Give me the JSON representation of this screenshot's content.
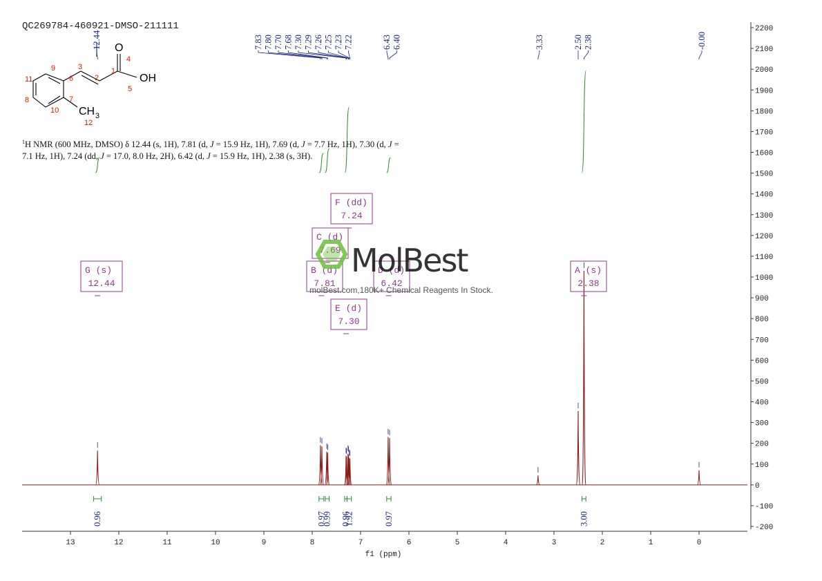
{
  "header": {
    "sample_id": "QC269784-460921-DMSO-211111"
  },
  "nmr_description": {
    "sup": "1",
    "parts": [
      {
        "t": "H NMR (600 MHz, DMSO) δ 12.44 (s, 1H), 7.81 (d, ",
        "i": false
      },
      {
        "t": "J",
        "i": true
      },
      {
        "t": " = 15.9 Hz, 1H), 7.69 (d, ",
        "i": false
      },
      {
        "t": "J",
        "i": true
      },
      {
        "t": " = 7.7 Hz, 1H), 7.30 (d, ",
        "i": false
      },
      {
        "t": "J",
        "i": true
      },
      {
        "t": " = 7.1 Hz, 1H), 7.24 (dd, ",
        "i": false
      },
      {
        "t": "J",
        "i": true
      },
      {
        "t": " = 17.0, 8.0 Hz, 2H), 6.42 (d, ",
        "i": false
      },
      {
        "t": "J",
        "i": true
      },
      {
        "t": " = 15.9 Hz, 1H), 2.38 (s, 3H).",
        "i": false
      }
    ]
  },
  "molecule": {
    "atoms": [
      {
        "label": "O",
        "color": "#000000"
      },
      {
        "label": "OH",
        "color": "#000000"
      },
      {
        "label": "CH",
        "sub": "3",
        "color": "#000000"
      }
    ],
    "numbers": [
      "1",
      "2",
      "3",
      "4",
      "5",
      "6",
      "7",
      "8",
      "9",
      "10",
      "11",
      "12"
    ],
    "number_color": "#cc2200"
  },
  "watermark": {
    "brand": "MolBest",
    "tagline": "molBest.com,180K+ Chemical Reagents In Stock.",
    "hex_color": "#6abf3b"
  },
  "colors": {
    "spectrum": "#8b1a1a",
    "peak_labels": "#1a237e",
    "integral_curve": "#2e8b2e",
    "integral_label": "#1a6e1a",
    "multiplet_box": "#8e3a8e"
  },
  "chart_data": {
    "type": "line",
    "title": "",
    "xlabel": "f1 (ppm)",
    "ylabel": "",
    "xlim": [
      14.0,
      -1.0
    ],
    "ylim": [
      -200,
      2200
    ],
    "x_ticks": [
      13,
      12,
      11,
      10,
      9,
      8,
      7,
      6,
      5,
      4,
      3,
      2,
      1,
      0
    ],
    "y_ticks": [
      -200,
      -100,
      0,
      100,
      200,
      300,
      400,
      500,
      600,
      700,
      800,
      900,
      1000,
      1100,
      1200,
      1300,
      1400,
      1500,
      1600,
      1700,
      1800,
      1900,
      2000,
      2100,
      2200
    ],
    "peaks": [
      {
        "ppm": 12.44,
        "height": 165
      },
      {
        "ppm": 7.83,
        "height": 190
      },
      {
        "ppm": 7.8,
        "height": 185
      },
      {
        "ppm": 7.7,
        "height": 160
      },
      {
        "ppm": 7.68,
        "height": 155
      },
      {
        "ppm": 7.3,
        "height": 140
      },
      {
        "ppm": 7.29,
        "height": 135
      },
      {
        "ppm": 7.26,
        "height": 150
      },
      {
        "ppm": 7.25,
        "height": 145
      },
      {
        "ppm": 7.23,
        "height": 130
      },
      {
        "ppm": 7.22,
        "height": 125
      },
      {
        "ppm": 6.43,
        "height": 230
      },
      {
        "ppm": 6.4,
        "height": 225
      },
      {
        "ppm": 3.33,
        "height": 45
      },
      {
        "ppm": 2.5,
        "height": 355
      },
      {
        "ppm": 2.38,
        "height": 1030
      },
      {
        "ppm": 0.0,
        "height": 70
      }
    ],
    "peak_labels": [
      "7.83",
      "7.80",
      "7.70",
      "7.68",
      "7.30",
      "7.29",
      "7.26",
      "7.25",
      "7.23",
      "7.22",
      "6.43",
      "6.40",
      "12.44",
      "3.33",
      "2.50",
      "2.38",
      "-0.00"
    ],
    "integrals": [
      {
        "from": 12.52,
        "to": 12.36,
        "value": "0.96"
      },
      {
        "from": 7.86,
        "to": 7.76,
        "value": "0.97"
      },
      {
        "from": 7.73,
        "to": 7.65,
        "value": "0.99"
      },
      {
        "from": 7.33,
        "to": 7.28,
        "value": "0.96"
      },
      {
        "from": 7.28,
        "to": 7.19,
        "value": "1.92"
      },
      {
        "from": 6.46,
        "to": 6.37,
        "value": "0.97"
      },
      {
        "from": 2.42,
        "to": 2.34,
        "value": "3.00"
      }
    ],
    "multiplets": [
      {
        "letter": "A",
        "mult": "s",
        "shift": "2.38"
      },
      {
        "letter": "B",
        "mult": "d",
        "shift": "7.81"
      },
      {
        "letter": "C",
        "mult": "d",
        "shift": "7.69"
      },
      {
        "letter": "D",
        "mult": "d",
        "shift": "6.42"
      },
      {
        "letter": "E",
        "mult": "d",
        "shift": "7.30"
      },
      {
        "letter": "F",
        "mult": "dd",
        "shift": "7.24"
      },
      {
        "letter": "G",
        "mult": "s",
        "shift": "12.44"
      }
    ]
  }
}
